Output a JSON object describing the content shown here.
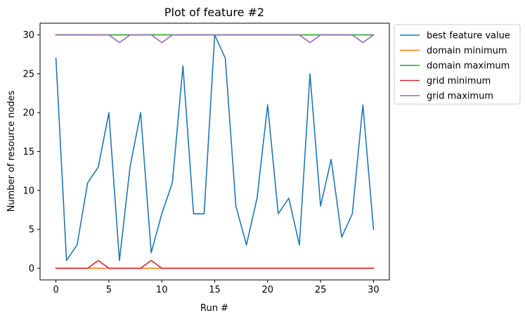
{
  "chart_data": {
    "type": "line",
    "title": "Plot of feature #2",
    "xlabel": "Run #",
    "ylabel": "Number of resource nodes",
    "xlim": [
      -1.5,
      31.5
    ],
    "ylim": [
      -1.5,
      31.5
    ],
    "xticks": [
      0,
      5,
      10,
      15,
      20,
      25,
      30
    ],
    "yticks": [
      0,
      5,
      10,
      15,
      20,
      25,
      30
    ],
    "grid": false,
    "legend_position": "outside-top-right",
    "x": [
      0,
      1,
      2,
      3,
      4,
      5,
      6,
      7,
      8,
      9,
      10,
      11,
      12,
      13,
      14,
      15,
      16,
      17,
      18,
      19,
      20,
      21,
      22,
      23,
      24,
      25,
      26,
      27,
      28,
      29,
      30
    ],
    "series": [
      {
        "name": "best feature value",
        "color": "#1f77b4",
        "values": [
          27,
          1,
          3,
          11,
          13,
          20,
          1,
          13,
          20,
          2,
          7,
          11,
          26,
          7,
          7,
          30,
          27,
          8,
          3,
          9,
          21,
          7,
          9,
          3,
          25,
          8,
          14,
          4,
          7,
          21,
          5
        ]
      },
      {
        "name": "domain minimum",
        "color": "#ff7f0e",
        "values": [
          0,
          0,
          0,
          0,
          0,
          0,
          0,
          0,
          0,
          0,
          0,
          0,
          0,
          0,
          0,
          0,
          0,
          0,
          0,
          0,
          0,
          0,
          0,
          0,
          0,
          0,
          0,
          0,
          0,
          0,
          0
        ]
      },
      {
        "name": "domain maximum",
        "color": "#2ca02c",
        "values": [
          30,
          30,
          30,
          30,
          30,
          30,
          30,
          30,
          30,
          30,
          30,
          30,
          30,
          30,
          30,
          30,
          30,
          30,
          30,
          30,
          30,
          30,
          30,
          30,
          30,
          30,
          30,
          30,
          30,
          30,
          30
        ]
      },
      {
        "name": "grid minimum",
        "color": "#d62728",
        "values": [
          0,
          0,
          0,
          0,
          1,
          0,
          0,
          0,
          0,
          1,
          0,
          0,
          0,
          0,
          0,
          0,
          0,
          0,
          0,
          0,
          0,
          0,
          0,
          0,
          0,
          0,
          0,
          0,
          0,
          0,
          0
        ]
      },
      {
        "name": "grid maximum",
        "color": "#9467bd",
        "values": [
          30,
          30,
          30,
          30,
          30,
          30,
          29,
          30,
          30,
          30,
          29,
          30,
          30,
          30,
          30,
          30,
          30,
          30,
          30,
          30,
          30,
          30,
          30,
          30,
          29,
          30,
          30,
          30,
          30,
          29,
          30
        ]
      }
    ]
  }
}
